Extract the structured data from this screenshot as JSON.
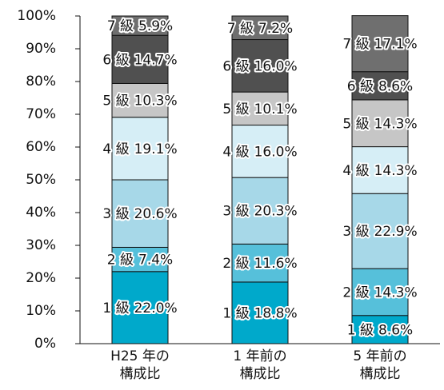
{
  "chart_data": {
    "type": "stacked_bar",
    "categories": [
      "H25 年の\n構成比",
      "1 年前の\n構成比",
      "5 年前の\n構成比"
    ],
    "series": [
      {
        "name": "1 級",
        "color": "#00a9cb",
        "values": [
          22.0,
          18.8,
          8.6
        ],
        "value_labels": [
          "22.0%",
          "18.8%",
          "8.6%"
        ]
      },
      {
        "name": "2 級",
        "color": "#56c0da",
        "values": [
          7.4,
          11.6,
          14.3
        ],
        "value_labels": [
          "7.4%",
          "11.6%",
          "14.3%"
        ]
      },
      {
        "name": "3 級",
        "color": "#a7d8e8",
        "values": [
          20.6,
          20.3,
          22.9
        ],
        "value_labels": [
          "20.6%",
          "20.3%",
          "22.9%"
        ]
      },
      {
        "name": "4 級",
        "color": "#d6eef6",
        "values": [
          19.1,
          16.0,
          14.3
        ],
        "value_labels": [
          "19.1%",
          "16.0%",
          "14.3%"
        ]
      },
      {
        "name": "5 級",
        "color": "#c6c6c6",
        "values": [
          10.3,
          10.1,
          14.3
        ],
        "value_labels": [
          "10.3%",
          "10.1%",
          "14.3%"
        ]
      },
      {
        "name": "6 級",
        "color": "#505050",
        "values": [
          14.7,
          16.0,
          8.6
        ],
        "value_labels": [
          "14.7%",
          "16.0%",
          "8.6%"
        ]
      },
      {
        "name": "7 級",
        "color": "#6f6f6f",
        "values": [
          5.9,
          7.2,
          17.1
        ],
        "value_labels": [
          "5.9%",
          "7.2%",
          "17.1%"
        ]
      }
    ],
    "ylim": [
      0,
      100
    ],
    "yticks": [
      {
        "value": 0,
        "label": "0%"
      },
      {
        "value": 10,
        "label": "10%"
      },
      {
        "value": 20,
        "label": "20%"
      },
      {
        "value": 30,
        "label": "30%"
      },
      {
        "value": 40,
        "label": "40%"
      },
      {
        "value": 50,
        "label": "50%"
      },
      {
        "value": 60,
        "label": "60%"
      },
      {
        "value": 70,
        "label": "70%"
      },
      {
        "value": 80,
        "label": "80%"
      },
      {
        "value": 90,
        "label": "90%"
      },
      {
        "value": 100,
        "label": "100%"
      }
    ]
  }
}
